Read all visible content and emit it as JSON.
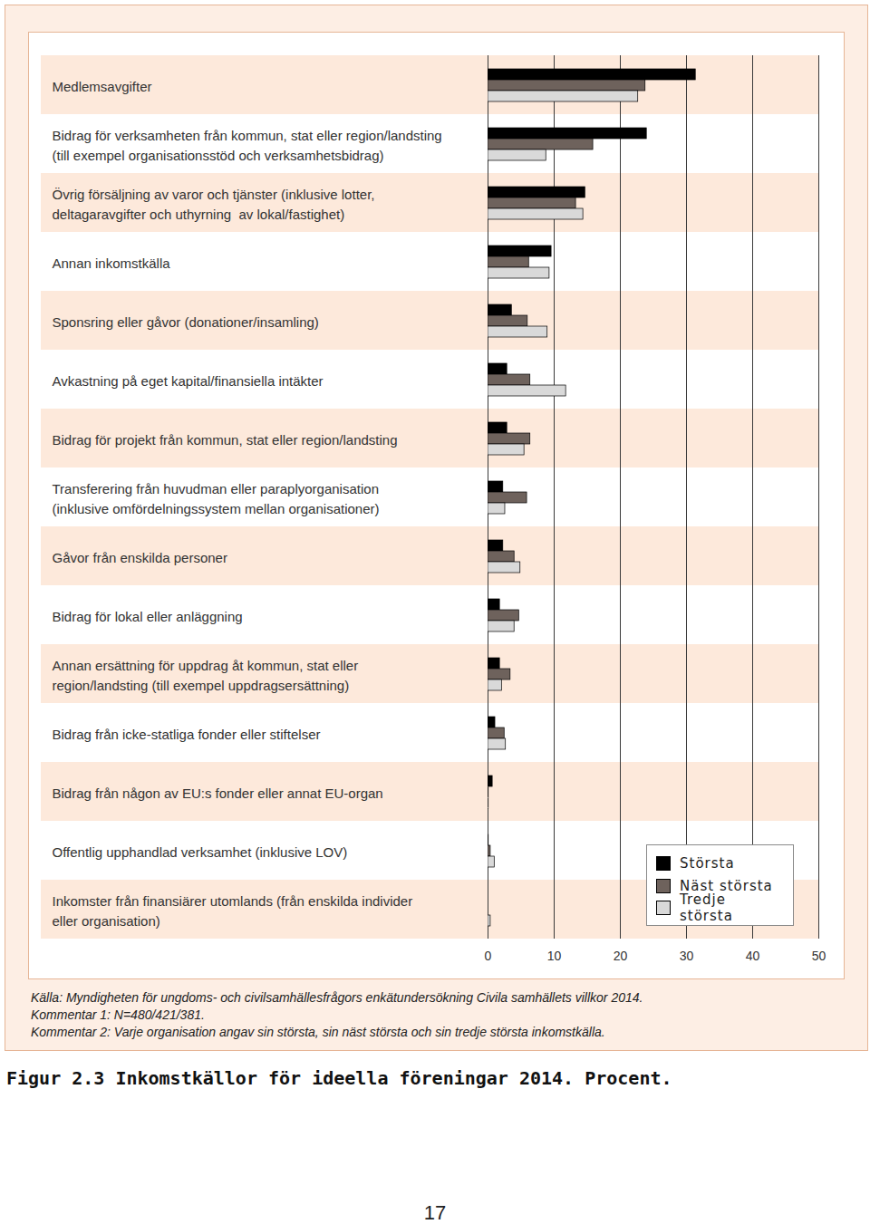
{
  "chart_data": {
    "type": "bar",
    "orientation": "horizontal",
    "title": "Figur 2.3 Inkomstkällor för ideella föreningar 2014. Procent.",
    "categories": [
      "Medlemsavgifter",
      "Bidrag för verksamheten från kommun, stat eller region/landsting\n(till exempel organisationsstöd och verksamhetsbidrag)",
      "Övrig försäljning av varor och tjänster (inklusive lotter,\ndeltagaravgifter och uthyrning  av lokal/fastighet)",
      "Annan inkomstkälla",
      "Sponsring eller gåvor (donationer/insamling)",
      "Avkastning på eget kapital/finansiella intäkter",
      "Bidrag för projekt från kommun, stat eller region/landsting",
      "Transferering från huvudman eller paraplyorganisation\n(inklusive omfördelningssystem mellan organisationer)",
      "Gåvor från enskilda personer",
      "Bidrag för lokal eller anläggning",
      "Annan ersättning för uppdrag åt kommun, stat eller\nregion/landsting (till exempel uppdragsersättning)",
      "Bidrag från icke-statliga fonder eller stiftelser",
      "Bidrag från någon av EU:s fonder eller annat EU-organ",
      "Offentlig upphandlad verksamhet (inklusive LOV)",
      "Inkomster från finansiärer utomlands (från enskilda individer\neller organisation)"
    ],
    "series": [
      {
        "name": "Största",
        "color": "#000000",
        "values": [
          31.4,
          24.0,
          14.7,
          9.6,
          3.6,
          2.9,
          2.9,
          2.3,
          2.3,
          1.8,
          1.8,
          1.1,
          0.7,
          0.1,
          0
        ]
      },
      {
        "name": "Näst största",
        "color": "#6e625c",
        "values": [
          23.8,
          15.9,
          13.3,
          6.2,
          6.0,
          6.4,
          6.4,
          5.9,
          4.0,
          4.7,
          3.4,
          2.5,
          0.1,
          0.4,
          0
        ]
      },
      {
        "name": "Tredje största",
        "color": "#d9d9d9",
        "values": [
          22.7,
          8.8,
          14.4,
          9.3,
          9.0,
          11.8,
          5.5,
          2.6,
          4.9,
          4.0,
          2.1,
          2.7,
          0.1,
          1.0,
          0.4
        ]
      }
    ],
    "xlim": [
      0,
      50
    ],
    "xticks": [
      0,
      10,
      20,
      30,
      40,
      50
    ],
    "grid": true,
    "legend": "lower right",
    "annotations": [
      "Källa: Myndigheten för ungdoms- och civilsamhällesfrågors enkätundersökning Civila samhällets villkor 2014.",
      "Kommentar 1: N=480/421/381.",
      "Kommentar 2: Varje organisation angav sin största, sin näst största och sin tredje största inkomstkälla."
    ]
  },
  "page_number": "17"
}
